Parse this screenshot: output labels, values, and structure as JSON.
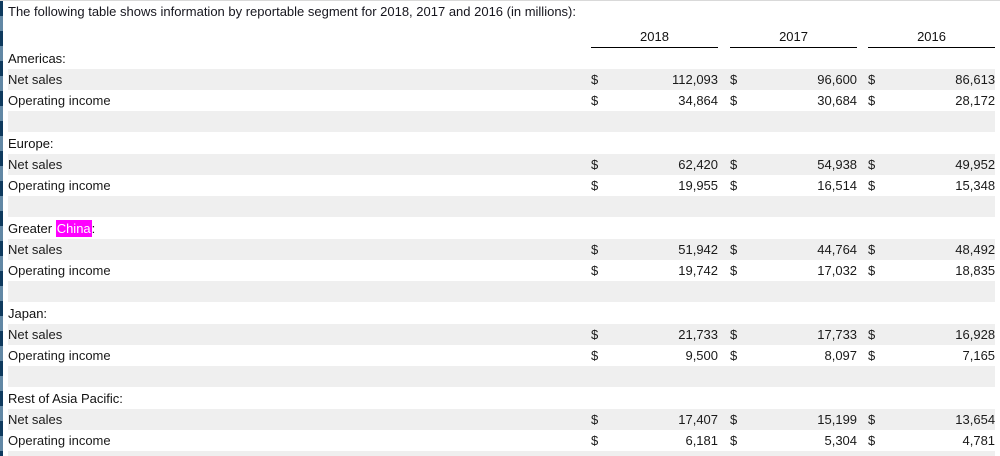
{
  "page": {
    "intro": "The following table shows information by reportable segment for 2018, 2017 and 2016 (in millions):"
  },
  "table": {
    "columns": [
      "2018",
      "2017",
      "2016"
    ],
    "currency_symbol": "$",
    "segments": [
      {
        "label": "Americas:",
        "rows": [
          {
            "label": "Net sales",
            "values": [
              "112,093",
              "96,600",
              "86,613"
            ]
          },
          {
            "label": "Operating income",
            "values": [
              "34,864",
              "30,684",
              "28,172"
            ]
          }
        ]
      },
      {
        "label": "Europe:",
        "rows": [
          {
            "label": "Net sales",
            "values": [
              "62,420",
              "54,938",
              "49,952"
            ]
          },
          {
            "label": "Operating income",
            "values": [
              "19,955",
              "16,514",
              "15,348"
            ]
          }
        ]
      },
      {
        "label": "Greater China:",
        "highlight": {
          "before": "Greater ",
          "match": "China",
          "after": ":"
        },
        "rows": [
          {
            "label": "Net sales",
            "values": [
              "51,942",
              "44,764",
              "48,492"
            ]
          },
          {
            "label": "Operating income",
            "values": [
              "19,742",
              "17,032",
              "18,835"
            ]
          }
        ]
      },
      {
        "label": "Japan:",
        "rows": [
          {
            "label": "Net sales",
            "values": [
              "21,733",
              "17,733",
              "16,928"
            ]
          },
          {
            "label": "Operating income",
            "values": [
              "9,500",
              "8,097",
              "7,165"
            ]
          }
        ]
      },
      {
        "label": "Rest of Asia Pacific:",
        "rows": [
          {
            "label": "Net sales",
            "values": [
              "17,407",
              "15,199",
              "13,654"
            ]
          },
          {
            "label": "Operating income",
            "values": [
              "6,181",
              "5,304",
              "4,781"
            ]
          }
        ]
      }
    ]
  },
  "colors": {
    "row_shade": "#efefef",
    "search_highlight_bg": "#ff00ff",
    "search_highlight_text": "#ffffff",
    "left_bar_dark": "#0e3a5e",
    "left_bar_light": "#6288a5",
    "header_underline": "#000000"
  }
}
